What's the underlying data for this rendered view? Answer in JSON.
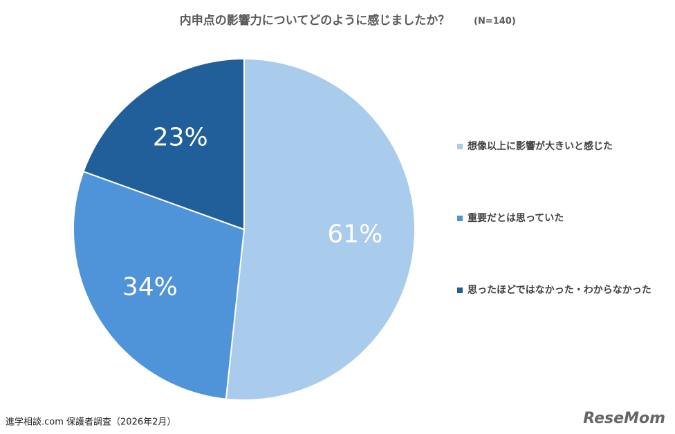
{
  "chart_data": {
    "type": "pie",
    "title": "内申点の影響力についてどのように感じましたか？",
    "subtitle": "(N=140)",
    "categories": [
      "想像以上に影響が大きいと感じた",
      "重要だとは思っていた",
      "思ったほどではなかった・わからなかった"
    ],
    "values": [
      61,
      34,
      23
    ],
    "value_labels": [
      "61%",
      "34%",
      "23%"
    ],
    "colors": [
      "#a9cbec",
      "#4f94d9",
      "#215f9a"
    ],
    "source": "進学相談.com 保護者調査（2026年2月）",
    "logo": "ReseMom"
  }
}
